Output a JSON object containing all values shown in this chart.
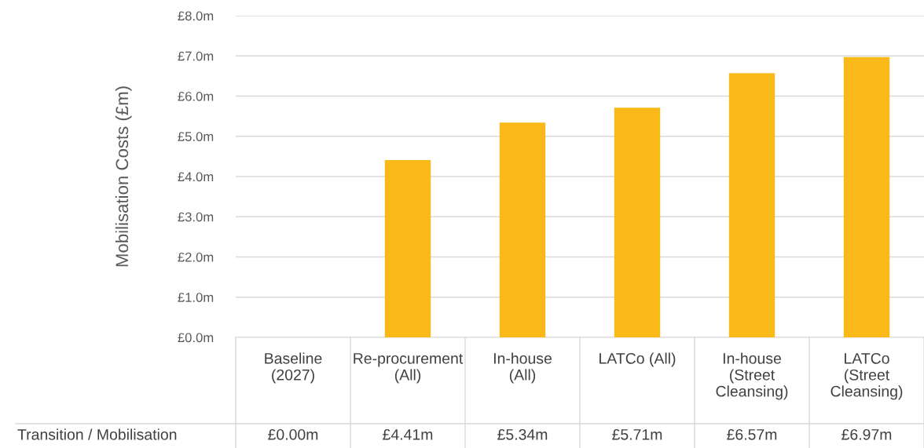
{
  "chart_data": {
    "type": "bar",
    "ylabel": "Mobilisation Costs (£m)",
    "categories": [
      "Baseline (2027)",
      "Re-procurement (All)",
      "In-house (All)",
      "LATCo (All)",
      "In-house (Street Cleansing)",
      "LATCo (Street Cleansing)"
    ],
    "series": [
      {
        "name": "Transition / Mobilisation",
        "color": "#f9b918",
        "values": [
          0.0,
          4.41,
          5.34,
          5.71,
          6.57,
          6.97
        ],
        "value_labels": [
          "£0.00m",
          "£4.41m",
          "£5.34m",
          "£5.71m",
          "£6.57m",
          "£6.97m"
        ]
      }
    ],
    "ylim": [
      0,
      8
    ],
    "yticks": [
      {
        "value": 0,
        "label": "£0.0m"
      },
      {
        "value": 1,
        "label": "£1.0m"
      },
      {
        "value": 2,
        "label": "£2.0m"
      },
      {
        "value": 3,
        "label": "£3.0m"
      },
      {
        "value": 4,
        "label": "£4.0m"
      },
      {
        "value": 5,
        "label": "£5.0m"
      },
      {
        "value": 6,
        "label": "£6.0m"
      },
      {
        "value": 7,
        "label": "£7.0m"
      },
      {
        "value": 8,
        "label": "£8.0m"
      }
    ],
    "grid": "y",
    "legend": false
  }
}
